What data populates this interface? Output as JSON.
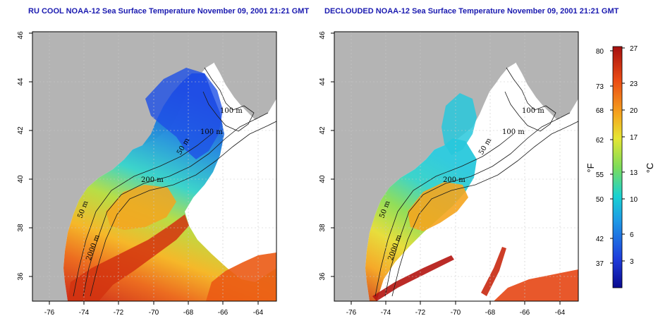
{
  "titles": {
    "left": "RU COOL NOAA-12 Sea Surface Temperature November 09, 2001 21:21 GMT",
    "right": "DECLOUDED NOAA-12 Sea Surface Temperature November 09, 2001 21:21 GMT"
  },
  "axes": {
    "lon_ticks": [
      "-76",
      "-74",
      "-72",
      "-70",
      "-68",
      "-66",
      "-64"
    ],
    "lat_ticks": [
      "36",
      "38",
      "40",
      "42",
      "44",
      "46"
    ]
  },
  "contour_labels": {
    "left": [
      "100 m",
      "100 m",
      "50 m",
      "200 m",
      "50 m",
      "2000 m"
    ],
    "right": [
      "100 m",
      "100 m",
      "50 m",
      "200 m",
      "50 m",
      "2000 m"
    ]
  },
  "colorbar": {
    "fahrenheit_ticks": [
      "80",
      "73",
      "68",
      "62",
      "55",
      "50",
      "42",
      "37"
    ],
    "celsius_ticks": [
      "27",
      "23",
      "20",
      "17",
      "13",
      "10",
      "6",
      "3"
    ],
    "fahrenheit_unit": "°F",
    "celsius_unit": "°C",
    "range_celsius": [
      0,
      27
    ],
    "colors": [
      "#0a0a90",
      "#1e3cdc",
      "#1e9be6",
      "#19d2d2",
      "#7ddc5a",
      "#e6e632",
      "#f5a51e",
      "#eb4b14",
      "#a50f0f"
    ]
  },
  "colors": {
    "land": "#b4b4b4",
    "ocean_nodata": "#ffffff",
    "title_blue": "#1a1ab0"
  }
}
